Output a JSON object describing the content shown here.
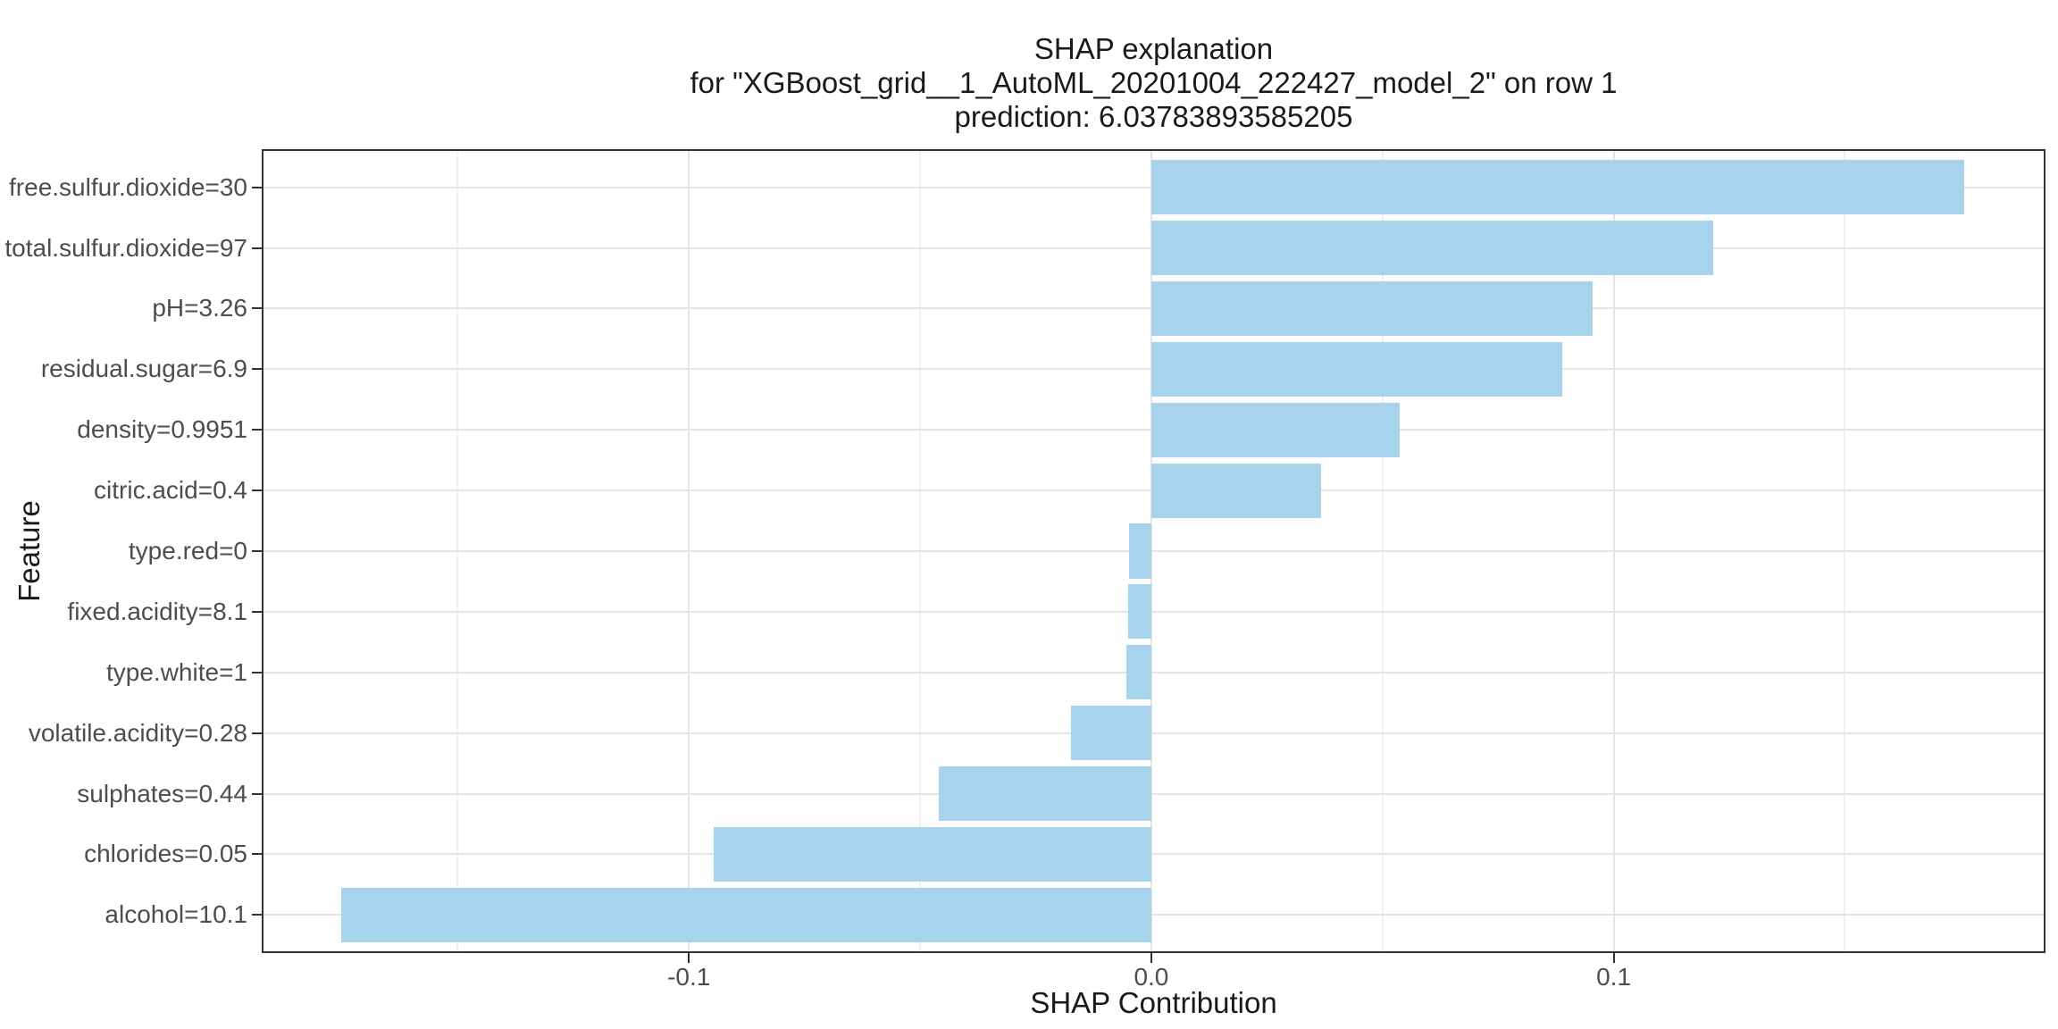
{
  "title": {
    "line1": "SHAP explanation",
    "line2": "for \"XGBoost_grid__1_AutoML_20201004_222427_model_2\" on row 1",
    "line3": "prediction: 6.03783893585205"
  },
  "chart_data": {
    "type": "bar",
    "orientation": "horizontal",
    "title_lines": [
      "SHAP explanation",
      "for \"XGBoost_grid__1_AutoML_20201004_222427_model_2\" on row 1",
      "prediction: 6.03783893585205"
    ],
    "xlabel": "SHAP Contribution",
    "ylabel": "Feature",
    "categories": [
      "free.sulfur.dioxide=30",
      "total.sulfur.dioxide=97",
      "pH=3.26",
      "residual.sugar=6.9",
      "density=0.9951",
      "citric.acid=0.4",
      "type.red=0",
      "fixed.acidity=8.1",
      "type.white=1",
      "volatile.acidity=0.28",
      "sulphates=0.44",
      "chlorides=0.05",
      "alcohol=10.1"
    ],
    "values": [
      0.1758,
      0.1215,
      0.0955,
      0.0889,
      0.0538,
      0.0368,
      -0.0049,
      -0.0051,
      -0.0053,
      -0.0174,
      -0.0459,
      -0.0947,
      -0.1751
    ],
    "xlim": [
      -0.192,
      0.193
    ],
    "x_major_ticks": [
      -0.1,
      0.0,
      0.1
    ],
    "x_tick_labels": [
      "-0.1",
      "0.0",
      "0.1"
    ],
    "x_minor_ticks": [
      -0.15,
      -0.05,
      0.05,
      0.15
    ],
    "bar_width_fraction": 0.9,
    "grid": "major-and-minor",
    "legend": "none"
  },
  "colors": {
    "bar_fill": "#A7D4EC",
    "grid_major": "#E4E4E4",
    "grid_minor": "#F0F0F0",
    "panel_border": "#333333",
    "tick_mark": "#333333",
    "axis_text": "#4D4D4D",
    "title_text": "#1A1A1A",
    "background": "#FFFFFF"
  }
}
